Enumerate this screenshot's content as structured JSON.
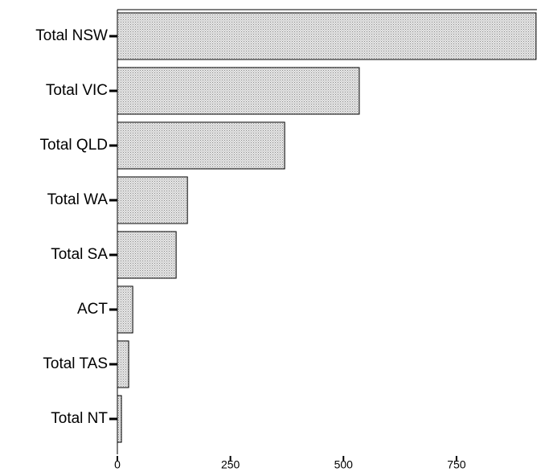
{
  "chart_data": {
    "type": "bar",
    "orientation": "horizontal",
    "categories": [
      "Total NSW",
      "Total VIC",
      "Total QLD",
      "Total WA",
      "Total SA",
      "ACT",
      "Total TAS",
      "Total NT"
    ],
    "values": [
      926,
      535,
      370,
      155,
      130,
      34,
      25,
      9
    ],
    "xlim": [
      0,
      928
    ],
    "xticks": [
      0,
      250,
      500,
      750
    ]
  }
}
